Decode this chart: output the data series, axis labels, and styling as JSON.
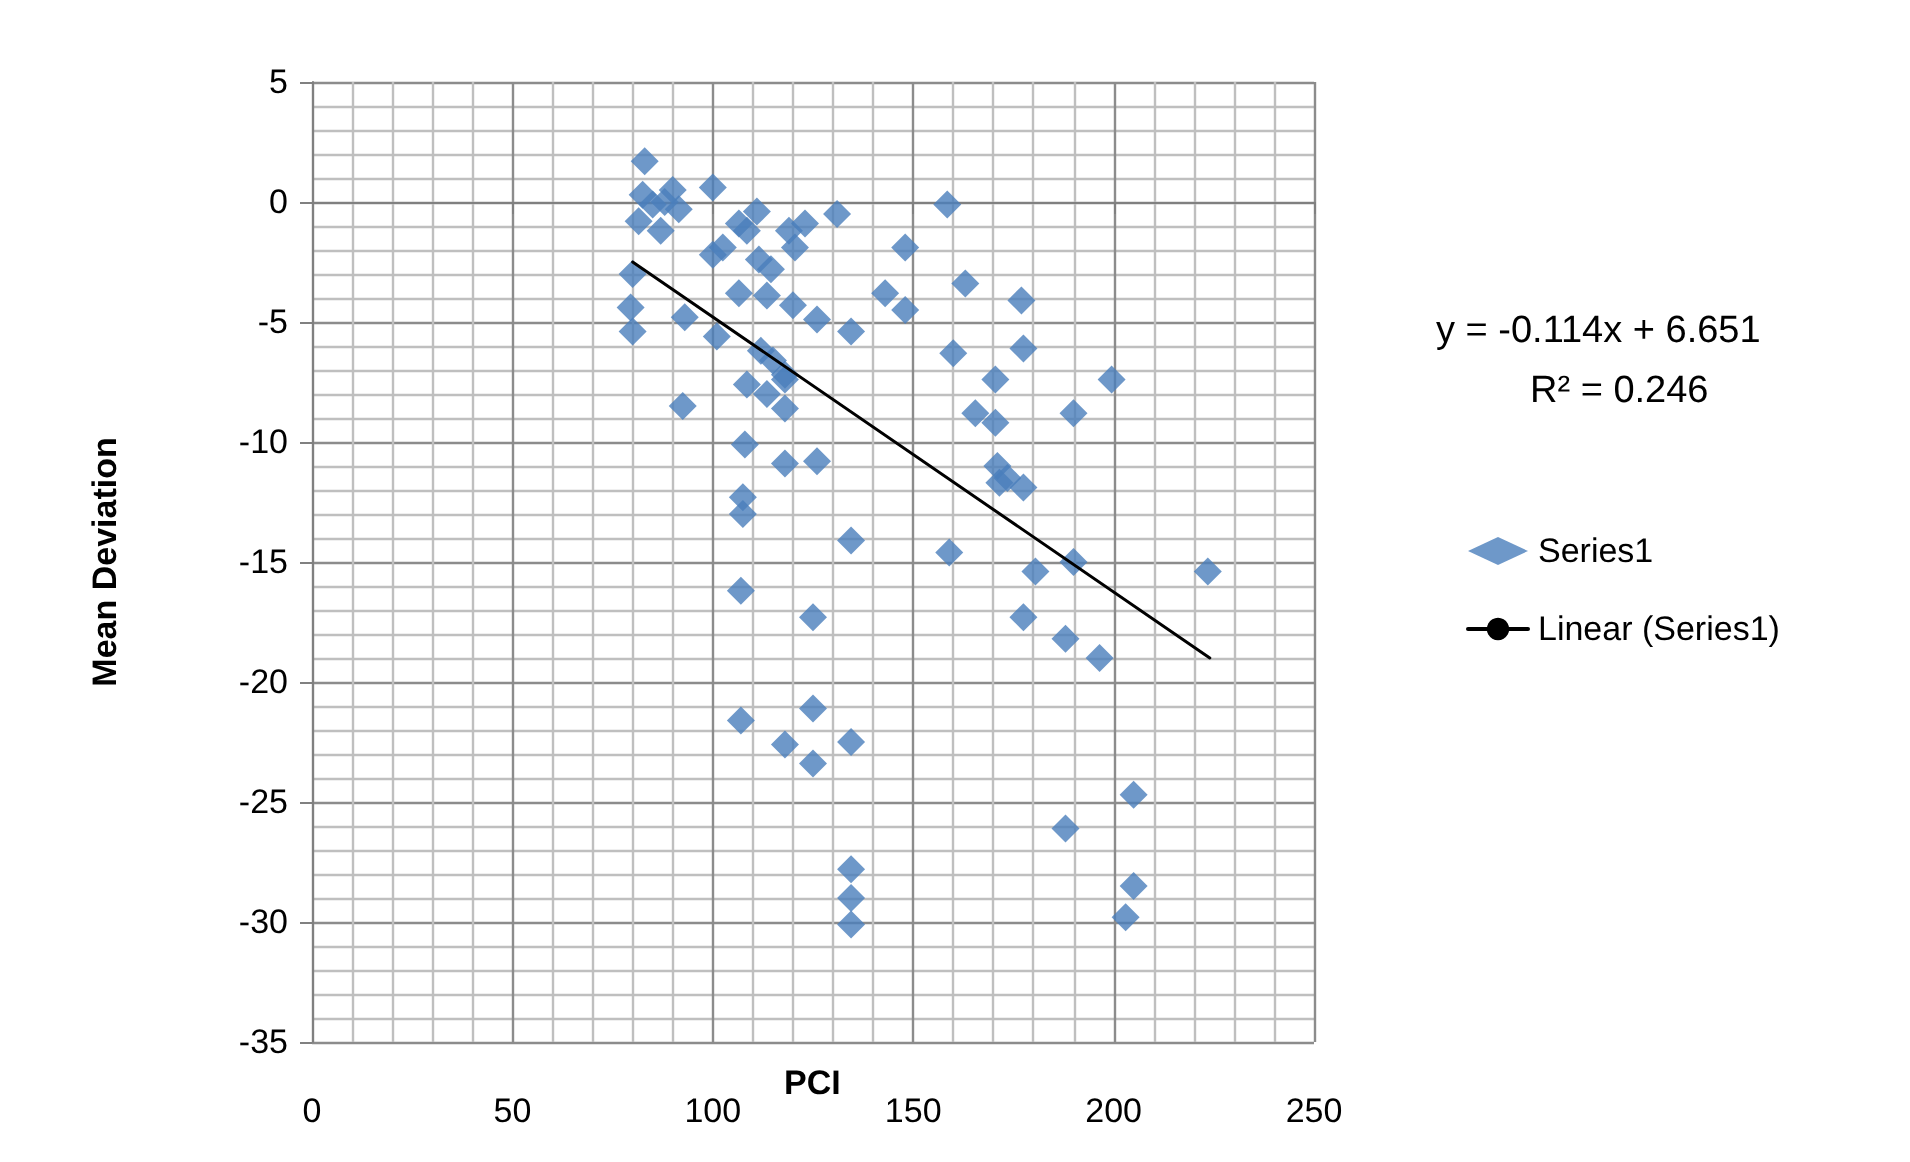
{
  "chart_data": {
    "type": "scatter",
    "xlabel": "PCI",
    "ylabel": "Mean Deviation",
    "annotations": [
      "y = -0.114x + 6.651",
      "R² = 0.246"
    ],
    "xlim": [
      0,
      250
    ],
    "xticks": [
      0,
      50,
      100,
      150,
      200,
      250
    ],
    "ylim": [
      -35,
      5
    ],
    "yticks": [
      -35,
      -30,
      -25,
      -20,
      -15,
      -10,
      -5,
      0,
      5
    ],
    "grid": true,
    "legend": "right",
    "marker": "diamond",
    "series": [
      {
        "name": "Series1",
        "color": "#4a7ebb",
        "x": [
          83,
          82.5,
          90,
          91.5,
          81.5,
          87,
          88,
          85,
          100,
          111,
          106.5,
          108.5,
          119,
          123,
          120.5,
          131,
          100,
          102.5,
          111.5,
          114.5,
          106.5,
          113.5,
          120,
          126,
          134.5,
          158.5,
          148,
          163,
          143,
          148,
          160,
          177,
          177.5,
          170.5,
          199.5,
          165.5,
          170.5,
          190,
          171,
          173.5,
          177.5,
          171.5,
          80,
          79.5,
          80,
          93,
          101,
          112,
          115,
          118,
          118,
          108.5,
          113.5,
          118,
          92.5,
          108,
          126,
          118,
          107.5,
          107.5,
          134.5,
          159,
          180.5,
          190,
          223.5,
          107,
          125,
          177.5,
          188,
          196.5,
          125,
          107,
          134.5,
          118,
          125,
          205,
          188,
          134.5,
          134.5,
          134.5,
          205,
          203
        ],
        "values": [
          1.7,
          0.3,
          0.5,
          -0.3,
          -0.8,
          -1.2,
          0,
          -0.1,
          0.6,
          -0.4,
          -0.9,
          -1.2,
          -1.2,
          -0.9,
          -1.9,
          -0.5,
          -2.2,
          -1.9,
          -2.4,
          -2.8,
          -3.8,
          -3.9,
          -4.3,
          -4.9,
          -5.4,
          -0.1,
          -1.9,
          -3.4,
          -3.8,
          -4.5,
          -6.3,
          -4.1,
          -6.1,
          -7.4,
          -7.4,
          -8.8,
          -9.2,
          -8.8,
          -11.0,
          -11.5,
          -11.9,
          -11.7,
          -3.0,
          -4.4,
          -5.4,
          -4.8,
          -5.6,
          -6.2,
          -6.6,
          -7.2,
          -7.4,
          -7.6,
          -8.0,
          -8.6,
          -8.5,
          -10.1,
          -10.8,
          -10.9,
          -12.3,
          -13.0,
          -14.1,
          -14.6,
          -15.4,
          -15.0,
          -15.4,
          -16.2,
          -17.3,
          -17.3,
          -18.2,
          -19.0,
          -21.1,
          -21.6,
          -22.5,
          -22.6,
          -23.4,
          -24.7,
          -26.1,
          -27.8,
          -29.0,
          -30.1,
          -28.5,
          -29.8
        ]
      },
      {
        "name": "Linear (Series1)",
        "type": "line",
        "color": "#000000",
        "marker": "none",
        "line_style": "solid",
        "x": [
          80,
          224
        ],
        "values": [
          -2.5,
          -19.0
        ]
      }
    ]
  }
}
